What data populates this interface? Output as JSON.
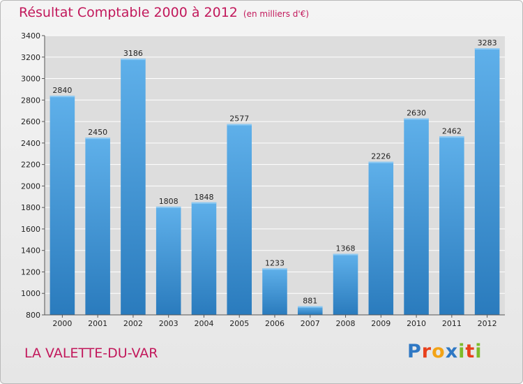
{
  "chart_title": "Résultat Comptable 2000 à 2012",
  "chart_unit": "(en milliers d'€)",
  "location": "LA VALETTE-DU-VAR",
  "logo": {
    "text": "Proxiti",
    "letters": [
      "P",
      "r",
      "o",
      "x",
      "i",
      "t",
      "i"
    ],
    "letter_colors": [
      "#2f78c4",
      "#e8401c",
      "#f3a316",
      "#2f78c4",
      "#7dbb2a",
      "#e8401c",
      "#7dbb2a"
    ]
  },
  "colors": {
    "bar_light": "#5fb0ea",
    "bar_dark": "#2a7bbd",
    "title": "#c2185b",
    "grid": "#ffffff",
    "plot_background": "#dddddd"
  },
  "chart_data": {
    "type": "bar",
    "title": "Résultat Comptable 2000 à 2012",
    "subtitle": "(en milliers d'€)",
    "xlabel": "",
    "ylabel": "",
    "categories": [
      "2000",
      "2001",
      "2002",
      "2003",
      "2004",
      "2005",
      "2006",
      "2007",
      "2008",
      "2009",
      "2010",
      "2011",
      "2012"
    ],
    "values": [
      2840,
      2450,
      3186,
      1808,
      1848,
      2577,
      1233,
      881,
      1368,
      2226,
      2630,
      2462,
      3283
    ],
    "ylim": [
      800,
      3400
    ],
    "yticks": [
      800,
      1000,
      1200,
      1400,
      1600,
      1800,
      2000,
      2200,
      2400,
      2600,
      2800,
      3000,
      3200,
      3400
    ],
    "grid": true,
    "legend": "none",
    "data_labels": true
  }
}
